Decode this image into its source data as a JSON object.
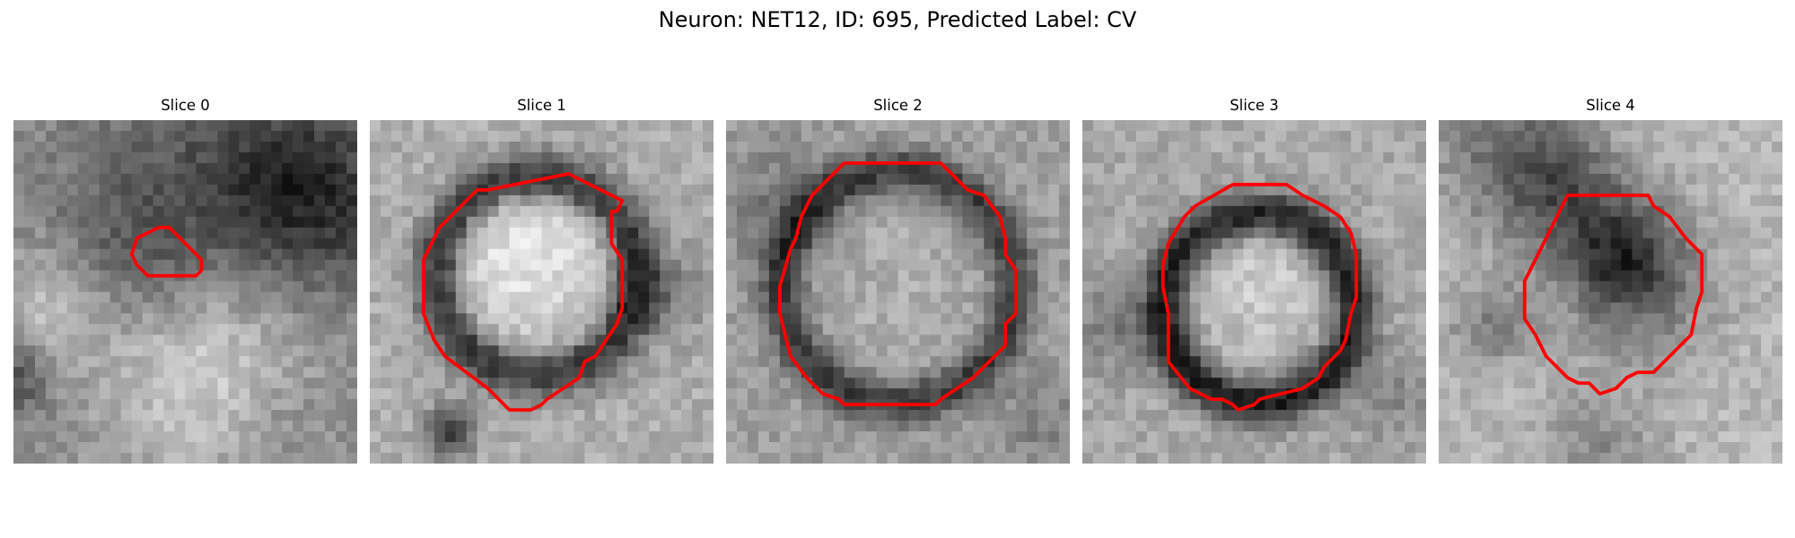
{
  "figure": {
    "title": "Neuron: NET12, ID: 695, Predicted Label: CV"
  },
  "colors": {
    "outline": "#ff0000"
  },
  "panels": [
    {
      "title": "Slice 0"
    },
    {
      "title": "Slice 1"
    },
    {
      "title": "Slice 2"
    },
    {
      "title": "Slice 3"
    },
    {
      "title": "Slice 4"
    }
  ]
}
